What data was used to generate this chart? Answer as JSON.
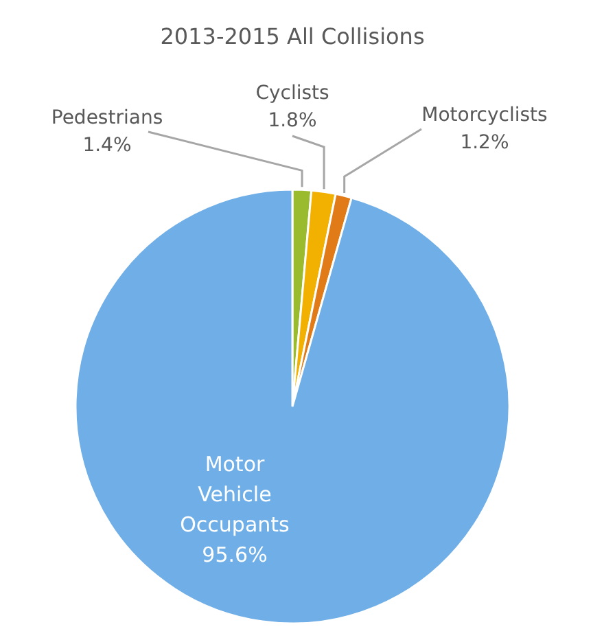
{
  "chart_data": {
    "type": "pie",
    "title": "2013-2015 All Collisions",
    "categories": [
      "Pedestrians",
      "Cyclists",
      "Motorcyclists",
      "Motor Vehicle Occupants"
    ],
    "values": [
      1.4,
      1.8,
      1.2,
      95.6
    ],
    "value_labels": [
      "1.4%",
      "1.8%",
      "1.2%",
      "95.6%"
    ],
    "colors": [
      "#9bbb2e",
      "#f2b000",
      "#e07b18",
      "#6faee6"
    ],
    "legend": false
  }
}
